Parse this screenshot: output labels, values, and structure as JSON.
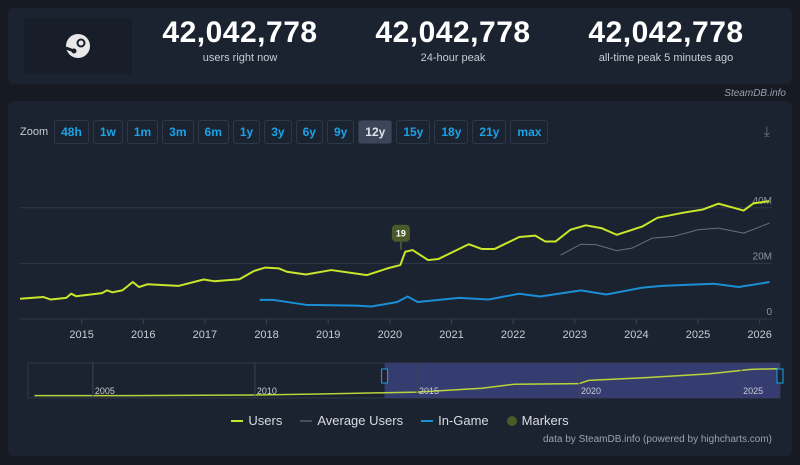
{
  "stats": [
    {
      "value": "42,042,778",
      "label": "users right now"
    },
    {
      "value": "42,042,778",
      "label": "24-hour peak"
    },
    {
      "value": "42,042,778",
      "label": "all-time peak 5 minutes ago"
    }
  ],
  "brand": "SteamDB.info",
  "zoom": {
    "label": "Zoom",
    "buttons": [
      "48h",
      "1w",
      "1m",
      "3m",
      "6m",
      "1y",
      "3y",
      "6y",
      "9y",
      "12y",
      "15y",
      "18y",
      "21y",
      "max"
    ],
    "selected": "12y",
    "download_icon": "download-icon"
  },
  "legend": [
    "Users",
    "Average Users",
    "In-Game",
    "Markers"
  ],
  "credit": "data by SteamDB.info (powered by highcharts.com)",
  "chart_data": {
    "type": "line",
    "xlim": [
      2014.0,
      2026.2
    ],
    "ylim": [
      0,
      45
    ],
    "y_ticks": [
      "0",
      "20M",
      "40M"
    ],
    "y_tick_values": [
      0,
      20,
      40
    ],
    "x_ticks": [
      "2015",
      "2016",
      "2017",
      "2018",
      "2019",
      "2020",
      "2021",
      "2022",
      "2023",
      "2024",
      "2025",
      "2026"
    ],
    "grid": true,
    "legend_placement": "bottom",
    "colors": {
      "Users": "#c8e62a",
      "Average Users": "#6b6f75",
      "In-Game": "#1a8fd6",
      "Markers": "#4a5a2a"
    },
    "series": [
      {
        "name": "Users",
        "points": [
          [
            2014.0,
            7.3
          ],
          [
            2014.38,
            7.9
          ],
          [
            2014.5,
            7.0
          ],
          [
            2014.75,
            7.6
          ],
          [
            2014.83,
            9.1
          ],
          [
            2014.91,
            8.2
          ],
          [
            2015.33,
            9.3
          ],
          [
            2015.41,
            10.3
          ],
          [
            2015.5,
            9.6
          ],
          [
            2015.66,
            10.3
          ],
          [
            2015.83,
            13.3
          ],
          [
            2015.93,
            11.5
          ],
          [
            2016.07,
            12.5
          ],
          [
            2016.57,
            11.9
          ],
          [
            2016.98,
            14.2
          ],
          [
            2017.15,
            13.6
          ],
          [
            2017.56,
            14.3
          ],
          [
            2017.8,
            17.3
          ],
          [
            2017.98,
            18.5
          ],
          [
            2018.2,
            18.2
          ],
          [
            2018.33,
            17
          ],
          [
            2018.64,
            16
          ],
          [
            2019.05,
            17.6
          ],
          [
            2019.63,
            15.8
          ],
          [
            2019.96,
            18.2
          ],
          [
            2020.17,
            19.4
          ],
          [
            2020.25,
            24.2
          ],
          [
            2020.37,
            24.8
          ],
          [
            2020.62,
            21.2
          ],
          [
            2020.79,
            21.6
          ],
          [
            2021.28,
            26.9
          ],
          [
            2021.49,
            25.2
          ],
          [
            2021.7,
            25.2
          ],
          [
            2022.1,
            29.5
          ],
          [
            2022.36,
            30
          ],
          [
            2022.52,
            27.9
          ],
          [
            2022.69,
            27.9
          ],
          [
            2022.93,
            32.1
          ],
          [
            2023.18,
            33.7
          ],
          [
            2023.43,
            32.7
          ],
          [
            2023.68,
            30.3
          ],
          [
            2024.1,
            33.3
          ],
          [
            2024.34,
            36.4
          ],
          [
            2024.75,
            38.2
          ],
          [
            2025.08,
            39.4
          ],
          [
            2025.33,
            41.5
          ],
          [
            2025.58,
            40
          ],
          [
            2025.74,
            39
          ],
          [
            2025.9,
            41.6
          ],
          [
            2026.16,
            42.4
          ]
        ]
      },
      {
        "name": "Average Users",
        "points": [
          [
            2022.77,
            23
          ],
          [
            2023.1,
            26.9
          ],
          [
            2023.35,
            26.7
          ],
          [
            2023.68,
            24.6
          ],
          [
            2023.93,
            25.5
          ],
          [
            2024.26,
            29.1
          ],
          [
            2024.6,
            29.7
          ],
          [
            2025.0,
            32.1
          ],
          [
            2025.33,
            32.7
          ],
          [
            2025.74,
            30.9
          ],
          [
            2026.16,
            34.5
          ]
        ]
      },
      {
        "name": "In-Game",
        "points": [
          [
            2017.89,
            6.9
          ],
          [
            2018.1,
            6.9
          ],
          [
            2018.64,
            5.1
          ],
          [
            2019.46,
            4.8
          ],
          [
            2019.7,
            4.5
          ],
          [
            2020.12,
            6.1
          ],
          [
            2020.29,
            8.1
          ],
          [
            2020.45,
            6.1
          ],
          [
            2021.12,
            7.6
          ],
          [
            2021.6,
            7
          ],
          [
            2022.1,
            9.1
          ],
          [
            2022.44,
            8.1
          ],
          [
            2023.1,
            10.3
          ],
          [
            2023.51,
            8.8
          ],
          [
            2024.1,
            11.3
          ],
          [
            2024.42,
            11.9
          ],
          [
            2025.25,
            12.7
          ],
          [
            2025.66,
            11.5
          ],
          [
            2026.16,
            13.3
          ]
        ]
      }
    ],
    "markers": [
      {
        "x": 2020.18,
        "label": "19"
      }
    ],
    "navigator": {
      "x_ticks": [
        "2005",
        "2010",
        "2015",
        "2020",
        "2025"
      ],
      "selected_range": [
        2014.0,
        2026.2
      ]
    }
  }
}
